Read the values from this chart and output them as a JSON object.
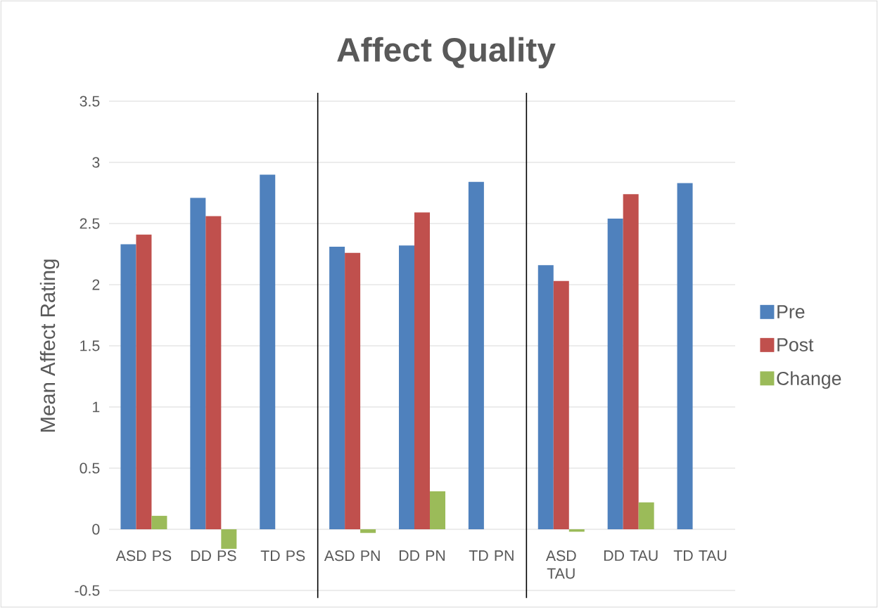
{
  "chart_data": {
    "type": "bar",
    "title": "Affect Quality",
    "ylabel": "Mean Affect Rating",
    "categories": [
      "ASD PS",
      "DD PS",
      "TD PS",
      "ASD PN",
      "DD PN",
      "TD PN",
      "ASD TAU",
      "DD TAU",
      "TD TAU"
    ],
    "series": [
      {
        "name": "Pre",
        "color": "#4f81bd",
        "values": [
          2.33,
          2.71,
          2.9,
          2.31,
          2.32,
          2.84,
          2.16,
          2.54,
          2.83
        ]
      },
      {
        "name": "Post",
        "color": "#c0504d",
        "values": [
          2.41,
          2.56,
          null,
          2.26,
          2.59,
          null,
          2.03,
          2.74,
          null
        ]
      },
      {
        "name": "Change",
        "color": "#9bbb59",
        "values": [
          0.11,
          -0.16,
          null,
          -0.03,
          0.31,
          null,
          -0.02,
          0.22,
          null
        ]
      }
    ],
    "ylim": [
      -0.5,
      3.5
    ],
    "yticks": [
      -0.5,
      0,
      0.5,
      1,
      1.5,
      2,
      2.5,
      3,
      3.5
    ],
    "grid": "y",
    "legend": "right"
  }
}
